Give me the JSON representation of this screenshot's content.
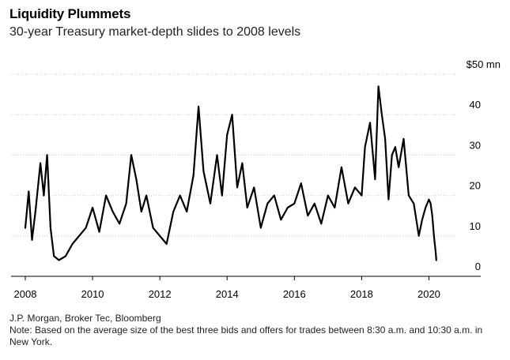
{
  "header": {
    "title": "Liquidity Plummets",
    "subtitle": "30-year Treasury market-depth slides to 2008 levels"
  },
  "footer": {
    "source": "J.P. Morgan, Broker Tec, Bloomberg",
    "note": "Note: Based on the average size of the best three bids and offers for trades between 8:30 a.m. and 10:30 a.m. in New York."
  },
  "chart_data": {
    "type": "line",
    "title": "Liquidity Plummets",
    "subtitle": "30-year Treasury market-depth slides to 2008 levels",
    "xlabel": "",
    "ylabel": "",
    "y_unit_label": "$50 mn",
    "ylim": [
      0,
      50
    ],
    "xlim": [
      2008,
      2021.4
    ],
    "y_ticks": [
      0,
      10,
      20,
      30,
      40
    ],
    "y_tick_labels": [
      "0",
      "10",
      "20",
      "30",
      "40"
    ],
    "x_ticks": [
      2008,
      2010,
      2012,
      2014,
      2016,
      2018,
      2020
    ],
    "x_tick_labels": [
      "2008",
      "2010",
      "2012",
      "2014",
      "2016",
      "2018",
      "2020"
    ],
    "grid": true,
    "line_color": "#000000",
    "series": [
      {
        "x": [
          2008.0,
          2008.1,
          2008.2,
          2008.3,
          2008.45,
          2008.55,
          2008.65,
          2008.75,
          2008.85,
          2009.0,
          2009.2,
          2009.4,
          2009.6,
          2009.8,
          2010.0,
          2010.2,
          2010.4,
          2010.6,
          2010.8,
          2011.0,
          2011.15,
          2011.3,
          2011.45,
          2011.6,
          2011.8,
          2012.0,
          2012.2,
          2012.4,
          2012.6,
          2012.8,
          2013.0,
          2013.15,
          2013.3,
          2013.5,
          2013.7,
          2013.85,
          2014.0,
          2014.15,
          2014.3,
          2014.45,
          2014.6,
          2014.8,
          2015.0,
          2015.2,
          2015.4,
          2015.6,
          2015.8,
          2016.0,
          2016.2,
          2016.4,
          2016.6,
          2016.8,
          2017.0,
          2017.2,
          2017.4,
          2017.6,
          2017.8,
          2018.0,
          2018.1,
          2018.25,
          2018.4,
          2018.5,
          2018.6,
          2018.7,
          2018.8,
          2018.9,
          2019.0,
          2019.1,
          2019.25,
          2019.4,
          2019.55,
          2019.7,
          2019.8,
          2019.9,
          2020.0,
          2020.05,
          2020.1,
          2020.15,
          2020.2,
          2020.22
        ],
        "values": [
          12,
          21,
          9,
          16,
          28,
          20,
          30,
          12,
          5,
          4,
          5,
          8,
          10,
          12,
          17,
          11,
          20,
          16,
          13,
          18,
          30,
          24,
          16,
          20,
          12,
          10,
          8,
          16,
          20,
          16,
          25,
          42,
          26,
          18,
          30,
          20,
          35,
          40,
          22,
          28,
          17,
          22,
          12,
          18,
          20,
          14,
          17,
          18,
          23,
          15,
          18,
          13,
          20,
          17,
          27,
          18,
          22,
          20,
          32,
          38,
          24,
          47,
          40,
          34,
          19,
          30,
          32,
          27,
          34,
          20,
          18,
          10,
          14,
          17,
          19,
          18,
          15,
          10,
          6,
          4
        ]
      }
    ]
  }
}
